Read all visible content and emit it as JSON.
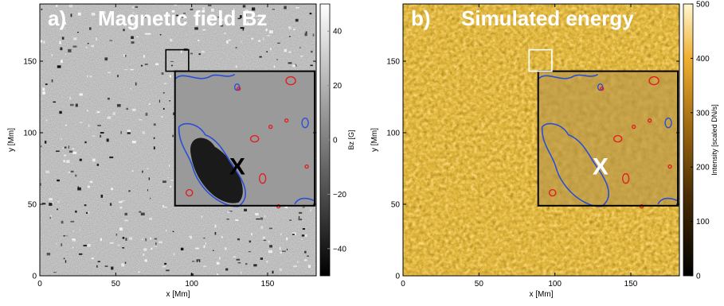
{
  "chart_data": [
    {
      "type": "heatmap",
      "title": "a)  Magnetic field Bz",
      "panel_letter": "a)",
      "panel_title": "Magnetic field Bz",
      "xlabel": "x [Mm]",
      "ylabel": "y [Mm]",
      "xlim": [
        0,
        182
      ],
      "ylim": [
        0,
        190
      ],
      "xticks": [
        0,
        50,
        100,
        150
      ],
      "yticks": [
        0,
        50,
        100,
        150
      ],
      "colormap": "gray",
      "colorbar": {
        "label": "Bz [G]",
        "range": [
          -50,
          50
        ],
        "ticks": [
          -40,
          -20,
          0,
          20,
          40
        ],
        "tick_labels": [
          "−40",
          "−20",
          "0",
          "20",
          "40"
        ]
      },
      "inset_box": {
        "x": [
          89,
          181
        ],
        "y": [
          49,
          143
        ]
      },
      "small_box": {
        "x": [
          83,
          98
        ],
        "y": [
          143,
          158
        ]
      },
      "marker": {
        "text": "X",
        "x": 130,
        "y": 77,
        "color": "#000000"
      },
      "contours": {
        "negative_color": "#2a4fd6",
        "positive_color": "#e02020"
      }
    },
    {
      "type": "heatmap",
      "title": "b)  Simulated energy",
      "panel_letter": "b)",
      "panel_title": "Simulated energy",
      "xlabel": "x [Mm]",
      "ylabel": "y [Mm]",
      "xlim": [
        0,
        182
      ],
      "ylim": [
        0,
        190
      ],
      "xticks": [
        0,
        50,
        100,
        150
      ],
      "yticks": [
        0,
        50,
        100,
        150
      ],
      "colormap": "hot-gold",
      "colorbar": {
        "label": "Intensity [scaled DN/s]",
        "range": [
          0,
          500
        ],
        "ticks": [
          0,
          100,
          200,
          300,
          400,
          500
        ],
        "tick_labels": [
          "0",
          "100",
          "200",
          "300",
          "400",
          "500"
        ]
      },
      "inset_box": {
        "x": [
          89,
          181
        ],
        "y": [
          49,
          143
        ]
      },
      "small_box": {
        "x": [
          83,
          98
        ],
        "y": [
          143,
          158
        ]
      },
      "marker": {
        "text": "X",
        "x": 130,
        "y": 77,
        "color": "#ffffff"
      },
      "contours": {
        "negative_color": "#2a4fd6",
        "positive_color": "#e02020"
      }
    }
  ],
  "colors": {
    "bz_background": "#808080",
    "energy_background": "#8a5a0a",
    "energy_bright": "#f0b030",
    "box_dark": "#000000",
    "box_light": "#ffffff"
  }
}
